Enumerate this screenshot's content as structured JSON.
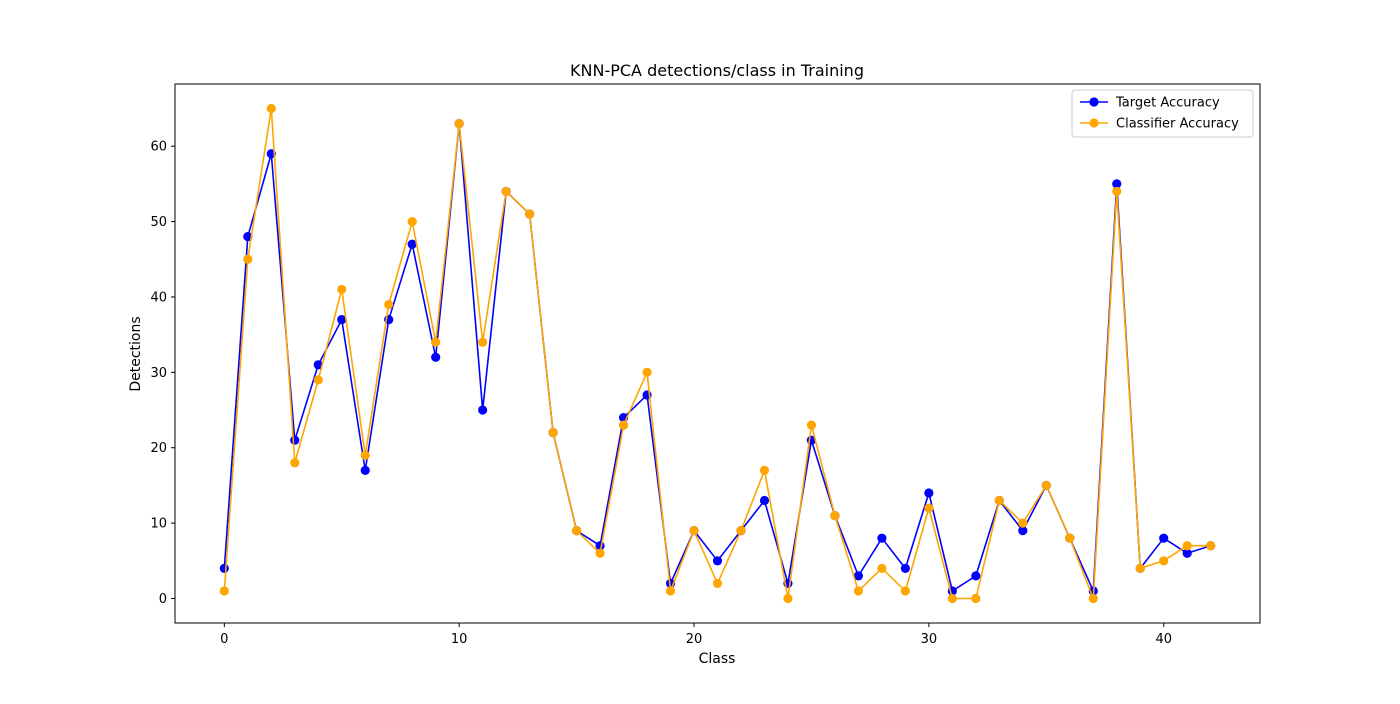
{
  "chart_data": {
    "type": "line",
    "title": "KNN-PCA detections/class in Training",
    "xlabel": "Class",
    "ylabel": "Detections",
    "x": [
      0,
      1,
      2,
      3,
      4,
      5,
      6,
      7,
      8,
      9,
      10,
      11,
      12,
      13,
      14,
      15,
      16,
      17,
      18,
      19,
      20,
      21,
      22,
      23,
      24,
      25,
      26,
      27,
      28,
      29,
      30,
      31,
      32,
      33,
      34,
      35,
      36,
      37,
      38,
      39,
      40,
      41,
      42
    ],
    "xlim": [
      -2.1,
      44.1
    ],
    "ylim": [
      -3.25,
      68.25
    ],
    "xticks": [
      0,
      10,
      20,
      30,
      40
    ],
    "yticks": [
      0,
      10,
      20,
      30,
      40,
      50,
      60
    ],
    "grid": false,
    "legend_position": "upper right",
    "series": [
      {
        "name": "Target Accuracy",
        "color": "#0000ff",
        "marker": "circle",
        "values": [
          4,
          48,
          59,
          21,
          31,
          37,
          17,
          37,
          47,
          32,
          63,
          25,
          54,
          51,
          22,
          9,
          7,
          24,
          27,
          2,
          9,
          5,
          9,
          13,
          2,
          21,
          11,
          3,
          8,
          4,
          14,
          1,
          3,
          13,
          9,
          15,
          8,
          1,
          55,
          4,
          8,
          6,
          7
        ]
      },
      {
        "name": "Classifier Accuracy",
        "color": "#ffa500",
        "marker": "circle",
        "values": [
          1,
          45,
          65,
          18,
          29,
          41,
          19,
          39,
          50,
          34,
          63,
          34,
          54,
          51,
          22,
          9,
          6,
          23,
          30,
          1,
          9,
          2,
          9,
          17,
          0,
          23,
          11,
          1,
          4,
          1,
          12,
          0,
          0,
          13,
          10,
          15,
          8,
          0,
          54,
          4,
          5,
          7,
          7
        ]
      }
    ]
  }
}
